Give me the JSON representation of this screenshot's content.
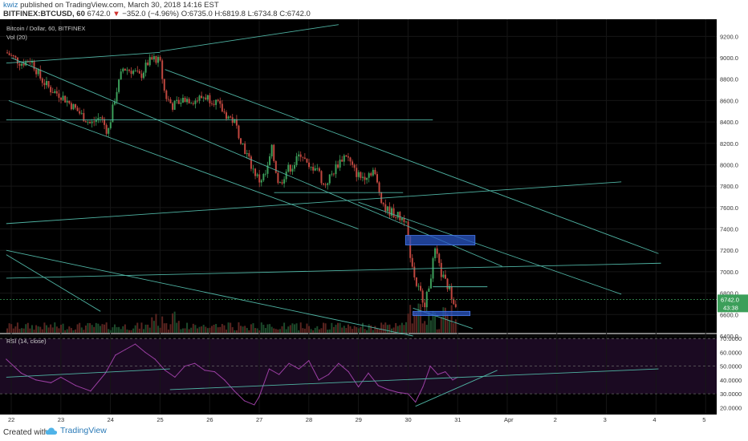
{
  "header": {
    "user": "kwiz",
    "published": "published on TradingView.com, March 30, 2018 14:16 EST",
    "symbol": "BITFINEX:BTCUSD, 60",
    "last": "6742.0",
    "change": "−352.0 (−4.96%)",
    "ohlc": "O:6735.0 H:6819.8 L:6734.8 C:6742.0"
  },
  "footer": {
    "created": "Created with",
    "brand": "TradingView"
  },
  "colors": {
    "background": "#000000",
    "grid": "#161616",
    "up": "#3c9f5a",
    "down": "#c0473f",
    "trendline": "#4fb3a3",
    "rsi": "#9b3fa3",
    "rsi_fill": "#1b0a22",
    "zone": "#2a56c4",
    "price_label": "#3c9f5a"
  },
  "chart_data": [
    {
      "type": "candlestick",
      "title": "Bitcoin / Dollar, 60, BITFINEX",
      "indicator": "Vol (20)",
      "ylim": [
        6400,
        9300
      ],
      "y_ticks": [
        "9200.0",
        "9000.0",
        "8800.0",
        "8600.0",
        "8400.0",
        "8200.0",
        "8000.0",
        "7800.0",
        "7600.0",
        "7400.0",
        "7200.0",
        "7000.0",
        "6800.0",
        "6600.0",
        "6400.0"
      ],
      "x_ticks": [
        "22",
        "23",
        "24",
        "25",
        "26",
        "27",
        "28",
        "29",
        "30",
        "31",
        "Apr",
        "2",
        "3",
        "4",
        "5"
      ],
      "last_price_label": "6742.0",
      "countdown_label": "43:38",
      "trend": [
        [
          21.9,
          9050
        ],
        [
          22.2,
          8950
        ],
        [
          22.4,
          8980
        ],
        [
          22.6,
          8800
        ],
        [
          22.8,
          8700
        ],
        [
          23.0,
          8650
        ],
        [
          23.3,
          8520
        ],
        [
          23.6,
          8380
        ],
        [
          23.8,
          8450
        ],
        [
          23.95,
          8300
        ],
        [
          24.1,
          8650
        ],
        [
          24.25,
          8900
        ],
        [
          24.45,
          8880
        ],
        [
          24.6,
          8820
        ],
        [
          24.75,
          8950
        ],
        [
          24.9,
          9000
        ],
        [
          25.0,
          8950
        ],
        [
          25.1,
          8650
        ],
        [
          25.25,
          8550
        ],
        [
          25.5,
          8620
        ],
        [
          25.7,
          8600
        ],
        [
          25.9,
          8640
        ],
        [
          26.1,
          8600
        ],
        [
          26.3,
          8480
        ],
        [
          26.5,
          8400
        ],
        [
          26.7,
          8150
        ],
        [
          26.85,
          7980
        ],
        [
          27.0,
          7850
        ],
        [
          27.15,
          7920
        ],
        [
          27.25,
          8150
        ],
        [
          27.4,
          7800
        ],
        [
          27.55,
          7950
        ],
        [
          27.7,
          8000
        ],
        [
          27.85,
          8120
        ],
        [
          28.0,
          7950
        ],
        [
          28.15,
          8000
        ],
        [
          28.3,
          7800
        ],
        [
          28.45,
          7900
        ],
        [
          28.6,
          8020
        ],
        [
          28.75,
          8100
        ],
        [
          28.9,
          7950
        ],
        [
          29.05,
          7880
        ],
        [
          29.2,
          7920
        ],
        [
          29.3,
          7950
        ],
        [
          29.45,
          7700
        ],
        [
          29.55,
          7580
        ],
        [
          29.7,
          7550
        ],
        [
          29.85,
          7500
        ],
        [
          29.95,
          7500
        ],
        [
          30.05,
          7150
        ],
        [
          30.15,
          6900
        ],
        [
          30.25,
          6800
        ],
        [
          30.35,
          6700
        ],
        [
          30.45,
          6950
        ],
        [
          30.55,
          7200
        ],
        [
          30.65,
          7000
        ],
        [
          30.75,
          6900
        ],
        [
          30.85,
          6820
        ],
        [
          30.95,
          6700
        ],
        [
          31.0,
          6742
        ]
      ],
      "trendlines": [
        {
          "from": [
            21.9,
            8950
          ],
          "to": [
            25.0,
            9050
          ]
        },
        {
          "from": [
            25.0,
            9060
          ],
          "to": [
            28.6,
            9310
          ]
        },
        {
          "from": [
            22.0,
            9000
          ],
          "to": [
            31.9,
            7050
          ]
        },
        {
          "from": [
            21.95,
            8600
          ],
          "to": [
            29.0,
            7400
          ]
        },
        {
          "from": [
            21.9,
            8420
          ],
          "to": [
            30.5,
            8420
          ]
        },
        {
          "from": [
            27.3,
            7740
          ],
          "to": [
            29.9,
            7740
          ]
        },
        {
          "from": [
            21.9,
            7450
          ],
          "to": [
            34.3,
            7840
          ]
        },
        {
          "from": [
            21.9,
            6940
          ],
          "to": [
            35.1,
            7080
          ]
        },
        {
          "from": [
            29.0,
            7650
          ],
          "to": [
            34.3,
            6790
          ]
        },
        {
          "from": [
            25.1,
            8890
          ],
          "to": [
            35.05,
            7170
          ]
        },
        {
          "from": [
            21.9,
            7200
          ],
          "to": [
            30.1,
            6400
          ]
        },
        {
          "from": [
            21.9,
            7160
          ],
          "to": [
            23.8,
            6630
          ]
        },
        {
          "from": [
            30.1,
            6660
          ],
          "to": [
            31.3,
            6470
          ]
        },
        {
          "from": [
            30.5,
            6860
          ],
          "to": [
            31.6,
            6860
          ]
        }
      ],
      "zones": [
        {
          "x": [
            29.95,
            31.35
          ],
          "y": [
            7250,
            7340
          ]
        },
        {
          "x": [
            30.1,
            31.25
          ],
          "y": [
            6590,
            6630
          ]
        }
      ]
    },
    {
      "type": "line",
      "title": "RSI (14, close)",
      "ylim": [
        15,
        73
      ],
      "y_ticks": [
        "70.0000",
        "60.0000",
        "50.0000",
        "40.0000",
        "30.0000",
        "20.0000"
      ],
      "band": [
        30,
        70
      ],
      "x": [
        21.9,
        22.2,
        22.5,
        22.8,
        23.0,
        23.3,
        23.6,
        23.9,
        24.1,
        24.3,
        24.5,
        24.7,
        24.9,
        25.1,
        25.3,
        25.5,
        25.7,
        25.9,
        26.1,
        26.3,
        26.5,
        26.7,
        26.9,
        27.0,
        27.2,
        27.4,
        27.6,
        27.8,
        28.0,
        28.2,
        28.4,
        28.6,
        28.8,
        29.0,
        29.2,
        29.4,
        29.6,
        29.8,
        30.0,
        30.15,
        30.3,
        30.45,
        30.6,
        30.75,
        30.9,
        31.0
      ],
      "values": [
        55,
        45,
        40,
        38,
        42,
        36,
        32,
        45,
        58,
        62,
        66,
        60,
        55,
        47,
        42,
        50,
        52,
        47,
        46,
        40,
        32,
        25,
        22,
        28,
        48,
        44,
        52,
        48,
        54,
        40,
        44,
        52,
        46,
        35,
        45,
        36,
        33,
        31,
        30,
        24,
        35,
        50,
        44,
        46,
        40,
        42
      ]
    }
  ]
}
